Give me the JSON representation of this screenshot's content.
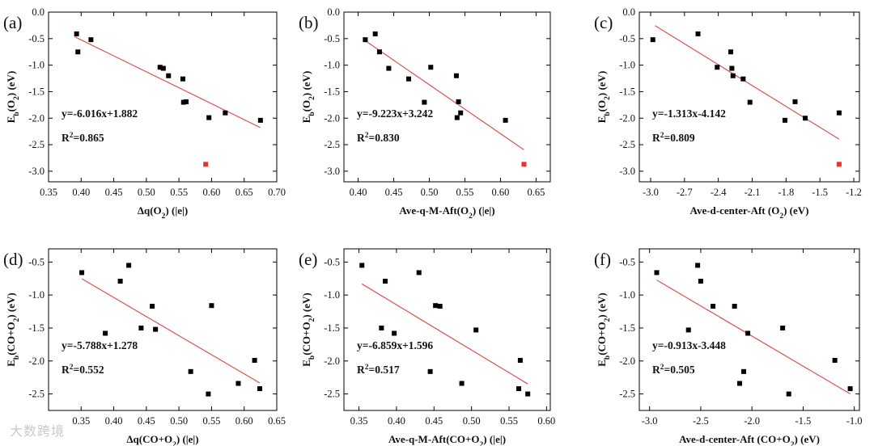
{
  "watermark": "大数跨境",
  "colors": {
    "point": "#000000",
    "outlier": "#e8322c",
    "fit": "#d9534f"
  },
  "chart_data": [
    {
      "type": "scatter",
      "letter": "(a)",
      "ylabel": [
        "E",
        "b",
        "(O",
        "2",
        ") (eV)"
      ],
      "xlabel": [
        "Δq(O",
        "2",
        ") (|e|)"
      ],
      "xlim": [
        0.35,
        0.7
      ],
      "ylim": [
        -3.2,
        0.0
      ],
      "xticks": [
        0.35,
        0.4,
        0.45,
        0.5,
        0.55,
        0.6,
        0.65,
        0.7
      ],
      "xtick_labels": [
        "0.35",
        "0.40",
        "0.45",
        "0.50",
        "0.55",
        "0.60",
        "0.65",
        "0.70"
      ],
      "yticks": [
        0.0,
        -0.5,
        -1.0,
        -1.5,
        -2.0,
        -2.5,
        -3.0
      ],
      "ytick_labels": [
        "0.0",
        "-0.5",
        "-1.0",
        "-1.5",
        "-2.0",
        "-2.5",
        "-3.0"
      ],
      "points": [
        [
          0.393,
          -0.41
        ],
        [
          0.395,
          -0.75
        ],
        [
          0.415,
          -0.52
        ],
        [
          0.521,
          -1.04
        ],
        [
          0.526,
          -1.06
        ],
        [
          0.534,
          -1.2
        ],
        [
          0.556,
          -1.26
        ],
        [
          0.557,
          -1.7
        ],
        [
          0.561,
          -1.69
        ],
        [
          0.596,
          -1.99
        ],
        [
          0.621,
          -1.9
        ],
        [
          0.675,
          -2.04
        ]
      ],
      "outliers": [
        [
          0.591,
          -2.87
        ]
      ],
      "equation": "y=-6.016x+1.882",
      "r2": [
        "R",
        "2",
        "=0.865"
      ],
      "fit": {
        "slope": -6.016,
        "intercept": 1.882,
        "x_range": [
          0.39,
          0.675
        ]
      }
    },
    {
      "type": "scatter",
      "letter": "(b)",
      "ylabel": [
        "E",
        "b",
        "(O",
        "2",
        ") (eV)"
      ],
      "xlabel": [
        "Ave-q-M-Aft(O",
        "2",
        ") (|e|)"
      ],
      "xlim": [
        0.38,
        0.67
      ],
      "ylim": [
        -3.2,
        0.0
      ],
      "xticks": [
        0.4,
        0.45,
        0.5,
        0.55,
        0.6,
        0.65
      ],
      "xtick_labels": [
        "0.40",
        "0.45",
        "0.50",
        "0.55",
        "0.60",
        "0.65"
      ],
      "yticks": [
        0.0,
        -0.5,
        -1.0,
        -1.5,
        -2.0,
        -2.5,
        -3.0
      ],
      "ytick_labels": [
        "0.0",
        "-0.5",
        "-1.0",
        "-1.5",
        "-2.0",
        "-2.5",
        "-3.0"
      ],
      "points": [
        [
          0.41,
          -0.52
        ],
        [
          0.424,
          -0.41
        ],
        [
          0.43,
          -0.75
        ],
        [
          0.443,
          -1.06
        ],
        [
          0.471,
          -1.26
        ],
        [
          0.493,
          -1.7
        ],
        [
          0.502,
          -1.04
        ],
        [
          0.538,
          -1.2
        ],
        [
          0.539,
          -1.99
        ],
        [
          0.541,
          -1.69
        ],
        [
          0.544,
          -1.9
        ],
        [
          0.607,
          -2.04
        ]
      ],
      "outliers": [
        [
          0.633,
          -2.87
        ]
      ],
      "equation": "y=-9.223x+3.242",
      "r2": [
        "R",
        "2",
        "=0.830"
      ],
      "fit": {
        "slope": -9.223,
        "intercept": 3.242,
        "x_range": [
          0.41,
          0.633
        ]
      }
    },
    {
      "type": "scatter",
      "letter": "(c)",
      "ylabel": [
        "E",
        "b",
        "(O",
        "2",
        ") (eV)"
      ],
      "xlabel": [
        "Ave-d-center-Aft (O",
        "2",
        ") (eV)"
      ],
      "xlim": [
        -3.1,
        -1.15
      ],
      "ylim": [
        -3.2,
        0.0
      ],
      "xticks": [
        -3.0,
        -2.7,
        -2.4,
        -2.1,
        -1.8,
        -1.5,
        -1.2
      ],
      "xtick_labels": [
        "-3.0",
        "-2.7",
        "-2.4",
        "-2.1",
        "-1.8",
        "-1.5",
        "-1.2"
      ],
      "yticks": [
        0.0,
        -0.5,
        -1.0,
        -1.5,
        -2.0,
        -2.5,
        -3.0
      ],
      "ytick_labels": [
        "0.0",
        "-0.5",
        "-1.0",
        "-1.5",
        "-2.0",
        "-2.5",
        "-3.0"
      ],
      "points": [
        [
          -2.98,
          -0.52
        ],
        [
          -2.58,
          -0.41
        ],
        [
          -2.41,
          -1.04
        ],
        [
          -2.29,
          -0.75
        ],
        [
          -2.28,
          -1.06
        ],
        [
          -2.27,
          -1.2
        ],
        [
          -2.18,
          -1.26
        ],
        [
          -2.12,
          -1.7
        ],
        [
          -1.81,
          -2.04
        ],
        [
          -1.72,
          -1.69
        ],
        [
          -1.63,
          -2.0
        ],
        [
          -1.33,
          -1.9
        ]
      ],
      "outliers": [
        [
          -1.33,
          -2.87
        ]
      ],
      "equation": "y=-1.313x-4.142",
      "r2": [
        "R",
        "2",
        "=0.809"
      ],
      "fit": {
        "slope": -1.313,
        "intercept": -4.142,
        "x_range": [
          -2.96,
          -1.33
        ]
      }
    },
    {
      "type": "scatter",
      "letter": "(d)",
      "ylabel": [
        "E",
        "b",
        "(CO+O",
        "2",
        ") (eV)"
      ],
      "xlabel": [
        "Δq(CO+O",
        "2",
        ") (|e|)"
      ],
      "xlim": [
        0.3,
        0.65
      ],
      "ylim": [
        -2.75,
        -0.3
      ],
      "xticks": [
        0.35,
        0.4,
        0.45,
        0.5,
        0.55,
        0.6,
        0.65
      ],
      "xtick_labels": [
        "0.35",
        "0.40",
        "0.45",
        "0.50",
        "0.55",
        "0.60",
        "0.65"
      ],
      "yticks": [
        -0.5,
        -1.0,
        -1.5,
        -2.0,
        -2.5
      ],
      "ytick_labels": [
        "-0.5",
        "-1.0",
        "-1.5",
        "-2.0",
        "-2.5"
      ],
      "points": [
        [
          0.351,
          -0.66
        ],
        [
          0.387,
          -1.58
        ],
        [
          0.41,
          -0.79
        ],
        [
          0.423,
          -0.55
        ],
        [
          0.442,
          -1.5
        ],
        [
          0.459,
          -1.17
        ],
        [
          0.464,
          -1.52
        ],
        [
          0.518,
          -2.16
        ],
        [
          0.545,
          -2.5
        ],
        [
          0.55,
          -1.16
        ],
        [
          0.591,
          -2.34
        ],
        [
          0.616,
          -1.99
        ],
        [
          0.624,
          -2.42
        ]
      ],
      "outliers": [],
      "equation": "y=-5.788x+1.278",
      "r2": [
        "R",
        "2",
        "=0.552"
      ],
      "fit": {
        "slope": -5.788,
        "intercept": 1.278,
        "x_range": [
          0.351,
          0.624
        ]
      }
    },
    {
      "type": "scatter",
      "letter": "(e)",
      "ylabel": [
        "E",
        "b",
        "(CO+O",
        "2",
        ") (eV)"
      ],
      "xlabel": [
        "Ave-q-M-Aft(CO+O",
        "2",
        ") (|e|)"
      ],
      "xlim": [
        0.33,
        0.605
      ],
      "ylim": [
        -2.75,
        -0.3
      ],
      "xticks": [
        0.35,
        0.4,
        0.45,
        0.5,
        0.55,
        0.6
      ],
      "xtick_labels": [
        "0.35",
        "0.40",
        "0.45",
        "0.50",
        "0.55",
        "0.60"
      ],
      "yticks": [
        -0.5,
        -1.0,
        -1.5,
        -2.0,
        -2.5
      ],
      "ytick_labels": [
        "-0.5",
        "-1.0",
        "-1.5",
        "-2.0",
        "-2.5"
      ],
      "points": [
        [
          0.354,
          -0.55
        ],
        [
          0.38,
          -1.5
        ],
        [
          0.385,
          -0.79
        ],
        [
          0.397,
          -1.58
        ],
        [
          0.43,
          -0.66
        ],
        [
          0.445,
          -2.16
        ],
        [
          0.452,
          -1.16
        ],
        [
          0.458,
          -1.17
        ],
        [
          0.487,
          -2.34
        ],
        [
          0.506,
          -1.53
        ],
        [
          0.563,
          -2.42
        ],
        [
          0.565,
          -1.99
        ],
        [
          0.575,
          -2.5
        ]
      ],
      "outliers": [],
      "equation": "y=-6.859x+1.596",
      "r2": [
        "R",
        "2",
        "=0.517"
      ],
      "fit": {
        "slope": -6.859,
        "intercept": 1.596,
        "x_range": [
          0.354,
          0.575
        ]
      }
    },
    {
      "type": "scatter",
      "letter": "(f)",
      "ylabel": [
        "E",
        "b",
        "(CO+O",
        "2",
        ") (eV)"
      ],
      "xlabel": [
        "Ave-d-center-Aft (CO+O",
        "2",
        ") (eV)"
      ],
      "xlim": [
        -3.1,
        -0.95
      ],
      "ylim": [
        -2.75,
        -0.3
      ],
      "xticks": [
        -3.0,
        -2.5,
        -2.0,
        -1.5,
        -1.0
      ],
      "xtick_labels": [
        "-3.0",
        "-2.5",
        "-2.0",
        "-1.5",
        "-1.0"
      ],
      "yticks": [
        -0.5,
        -1.0,
        -1.5,
        -2.0,
        -2.5
      ],
      "ytick_labels": [
        "-0.5",
        "-1.0",
        "-1.5",
        "-2.0",
        "-2.5"
      ],
      "points": [
        [
          -2.93,
          -0.66
        ],
        [
          -2.62,
          -1.53
        ],
        [
          -2.53,
          -0.55
        ],
        [
          -2.5,
          -0.79
        ],
        [
          -2.38,
          -1.17
        ],
        [
          -2.17,
          -1.17
        ],
        [
          -2.12,
          -2.34
        ],
        [
          -2.08,
          -2.16
        ],
        [
          -2.04,
          -1.58
        ],
        [
          -1.7,
          -1.5
        ],
        [
          -1.64,
          -2.5
        ],
        [
          -1.19,
          -1.99
        ],
        [
          -1.04,
          -2.42
        ]
      ],
      "outliers": [],
      "equation": "y=-0.913x-3.448",
      "r2": [
        "R",
        "2",
        "=0.505"
      ],
      "fit": {
        "slope": -0.913,
        "intercept": -3.448,
        "x_range": [
          -2.93,
          -1.04
        ]
      }
    }
  ]
}
